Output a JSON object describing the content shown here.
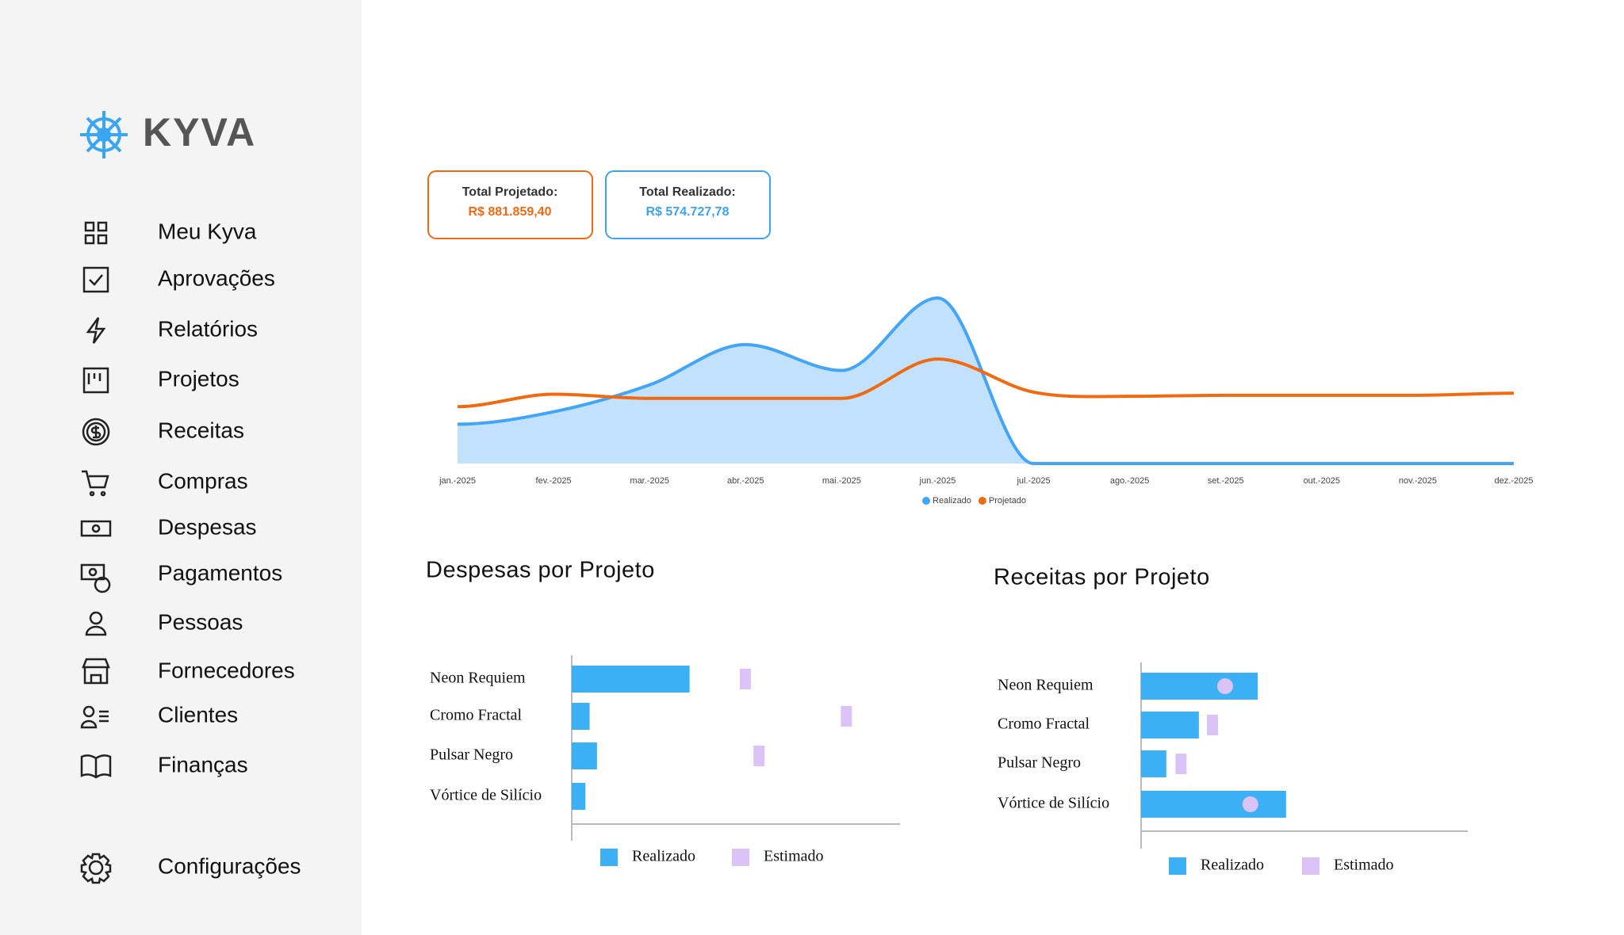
{
  "sidebar": {
    "brand": "KYVA",
    "nav": [
      "Meu Kyva",
      "Aprovações",
      "Relatórios",
      "Projetos",
      "Receitas",
      "Compras",
      "Despesas",
      "Pagamentos",
      "Pessoas",
      "Fornecedores",
      "Clientes",
      "Finanças"
    ],
    "settings": "Configurações"
  },
  "cards": [
    {
      "label": "Total Projetado:",
      "value": "R$ 881.859,40"
    },
    {
      "label": "Total Realizado:",
      "value": "R$ 574.727,78"
    }
  ],
  "chart_data": [
    {
      "type": "area-line",
      "categories": [
        "jan.-2025",
        "fev.-2025",
        "mar.-2025",
        "abr.-2025",
        "mai.-2025",
        "jun.-2025",
        "jul.-2025",
        "ago.-2025",
        "set.-2025",
        "out.-2025",
        "nov.-2025",
        "dez.-2025"
      ],
      "ylim": [
        0,
        180
      ],
      "series": [
        {
          "name": "Realizado",
          "color": "#42a5f5",
          "values": [
            38,
            50,
            76,
            115,
            90,
            160,
            0,
            0,
            0,
            0,
            0,
            0
          ]
        },
        {
          "name": "Projetado",
          "color": "#f26a10",
          "values": [
            55,
            67,
            63,
            63,
            63,
            101,
            69,
            65,
            66,
            66,
            66,
            68
          ]
        }
      ]
    },
    {
      "type": "hbar",
      "title": "Despesas por Projeto",
      "categories": [
        "Neon Requiem",
        "Cromo Fractal",
        "Pulsar Negro",
        "Vórtice de Silício"
      ],
      "xlim": [
        0,
        312
      ],
      "series": [
        {
          "name": "Realizado",
          "color": "#3bb0f5",
          "values": [
            112,
            17,
            24,
            13
          ]
        },
        {
          "name": "Estimado",
          "color": "#dcc3f7",
          "values": [
            165,
            261,
            178,
            null
          ]
        }
      ]
    },
    {
      "type": "hbar",
      "title": "Receitas por Projeto",
      "categories": [
        "Neon Requiem",
        "Cromo Fractal",
        "Pulsar Negro",
        "Vórtice de Silício"
      ],
      "xlim": [
        0,
        311
      ],
      "series": [
        {
          "name": "Realizado",
          "color": "#3bb0f5",
          "values": [
            111,
            55,
            24,
            138
          ]
        },
        {
          "name": "Estimado",
          "color": "#dcc3f7",
          "values": [
            80,
            68,
            38,
            104
          ]
        }
      ]
    }
  ]
}
